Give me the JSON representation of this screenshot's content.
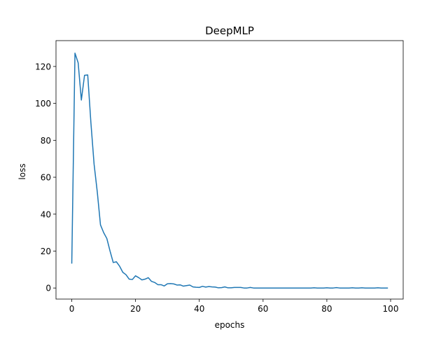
{
  "chart_data": {
    "type": "line",
    "title": "DeepMLP",
    "xlabel": "epochs",
    "ylabel": "loss",
    "xlim": [
      -4.95,
      103.95
    ],
    "ylim": [
      -6.0,
      134.0
    ],
    "xticks": [
      0,
      20,
      40,
      60,
      80,
      100
    ],
    "yticks": [
      0,
      20,
      40,
      60,
      80,
      100,
      120
    ],
    "grid": false,
    "series": [
      {
        "color": "#1f77b4",
        "x": [
          0,
          1,
          2,
          3,
          4,
          5,
          6,
          7,
          8,
          9,
          10,
          11,
          12,
          13,
          14,
          15,
          16,
          17,
          18,
          19,
          20,
          21,
          22,
          23,
          24,
          25,
          26,
          27,
          28,
          29,
          30,
          31,
          32,
          33,
          34,
          35,
          36,
          37,
          38,
          39,
          40,
          41,
          42,
          43,
          44,
          45,
          46,
          47,
          48,
          49,
          50,
          51,
          52,
          53,
          54,
          55,
          56,
          57,
          58,
          59,
          60,
          61,
          62,
          63,
          64,
          65,
          66,
          67,
          68,
          69,
          70,
          71,
          72,
          73,
          74,
          75,
          76,
          77,
          78,
          79,
          80,
          81,
          82,
          83,
          84,
          85,
          86,
          87,
          88,
          89,
          90,
          91,
          92,
          93,
          94,
          95,
          96,
          97,
          98,
          99
        ],
        "values": [
          13.5,
          127.2,
          122.0,
          101.8,
          115.2,
          115.4,
          89.5,
          67.0,
          52.0,
          34.2,
          30.0,
          26.8,
          20.0,
          13.8,
          14.2,
          11.8,
          8.5,
          7.2,
          4.8,
          4.6,
          6.6,
          5.6,
          4.4,
          4.8,
          5.6,
          3.6,
          3.0,
          1.8,
          1.8,
          1.1,
          2.3,
          2.4,
          2.2,
          1.6,
          1.7,
          1.0,
          1.3,
          1.6,
          0.6,
          0.4,
          0.3,
          0.9,
          0.5,
          0.8,
          0.6,
          0.5,
          0.1,
          0.2,
          0.6,
          0.1,
          0.1,
          0.3,
          0.3,
          0.3,
          0.0,
          0.0,
          0.3,
          0.0,
          0.0,
          0.0,
          0.0,
          0.0,
          0.0,
          0.0,
          0.0,
          0.0,
          0.0,
          0.0,
          0.0,
          0.0,
          0.0,
          0.0,
          0.0,
          0.0,
          0.0,
          0.0,
          0.1,
          0.0,
          0.0,
          0.0,
          0.1,
          0.0,
          0.0,
          0.2,
          0.0,
          0.0,
          0.0,
          0.0,
          0.1,
          0.0,
          0.0,
          0.1,
          0.0,
          0.0,
          0.0,
          0.0,
          0.1,
          0.0,
          0.0,
          0.0
        ]
      }
    ]
  }
}
